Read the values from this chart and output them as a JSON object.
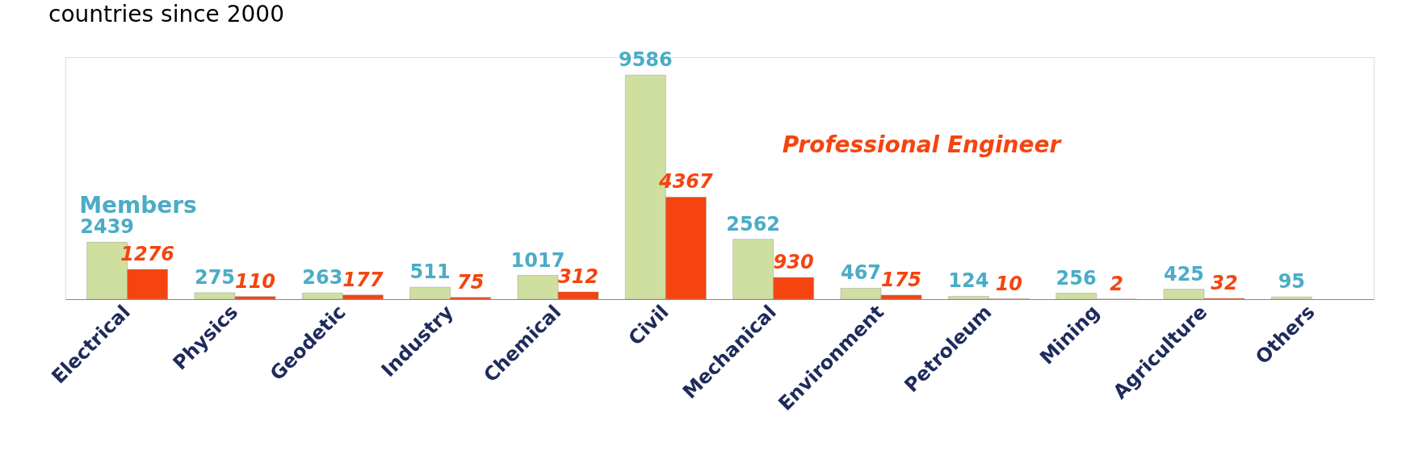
{
  "chart_data": {
    "type": "bar",
    "title": "countries since 2000",
    "categories": [
      "Electrical",
      "Physics",
      "Geodetic",
      "Industry",
      "Chemical",
      "Civil",
      "Mechanical",
      "Environment",
      "Petroleum",
      "Mining",
      "Agriculture",
      "Others"
    ],
    "series": [
      {
        "name": "Members",
        "color": "#cfdfa0",
        "values": [
          2439,
          275,
          263,
          511,
          1017,
          9586,
          2562,
          467,
          124,
          256,
          425,
          95
        ]
      },
      {
        "name": "Professional Engineer",
        "color": "#f5440f",
        "values": [
          1276,
          110,
          177,
          75,
          312,
          4367,
          930,
          175,
          10,
          2,
          32,
          null
        ]
      }
    ],
    "data_labels": true,
    "grid": false,
    "tick_labels": "x"
  }
}
